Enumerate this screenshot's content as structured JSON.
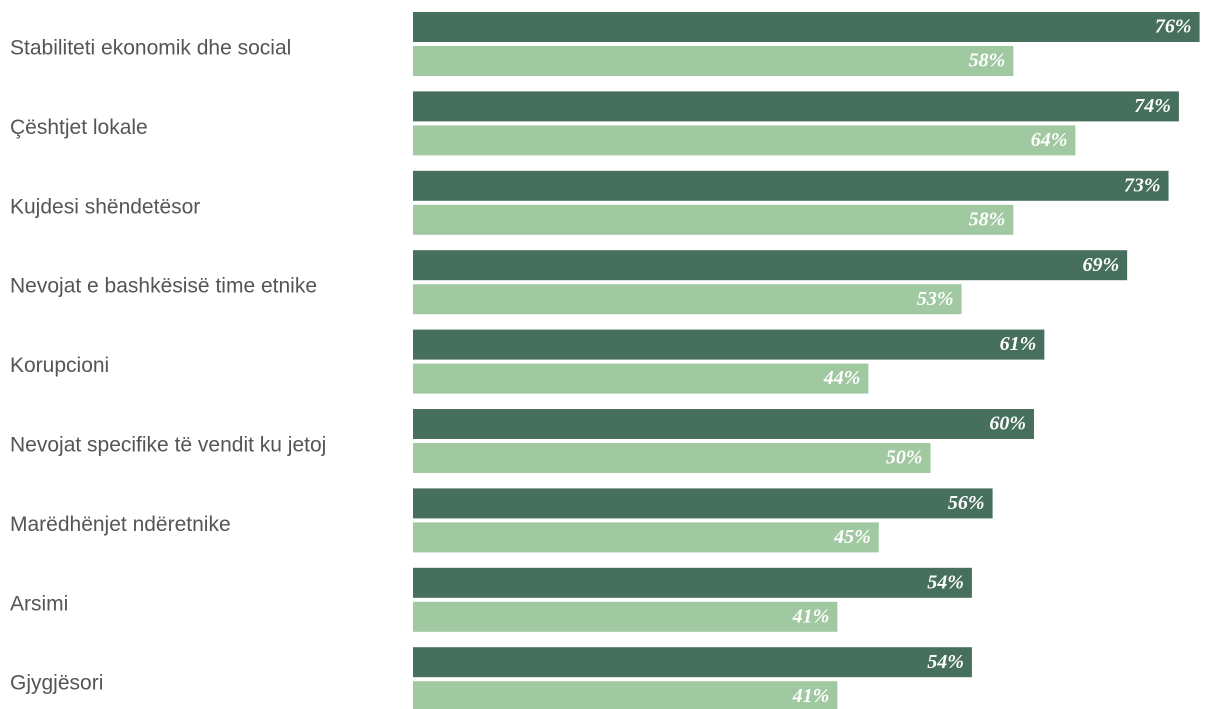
{
  "chart_data": {
    "type": "bar",
    "orientation": "horizontal",
    "categories": [
      "Stabiliteti ekonomik dhe social",
      "Çështjet lokale",
      "Kujdesi shëndetësor",
      "Nevojat e bashkësisë time etnike",
      "Korupcioni",
      "Nevojat specifike të vendit ku jetoj",
      "Marëdhënjet ndëretnike",
      "Arsimi",
      "Gjygjësori"
    ],
    "series": [
      {
        "values": [
          76,
          74,
          73,
          69,
          61,
          60,
          56,
          54,
          54
        ],
        "labels": [
          "76%",
          "74%",
          "73%",
          "69%",
          "61%",
          "60%",
          "56%",
          "54%",
          "54%"
        ],
        "color": "#466f5e"
      },
      {
        "values": [
          58,
          64,
          58,
          53,
          44,
          50,
          45,
          41,
          41
        ],
        "labels": [
          "58%",
          "64%",
          "58%",
          "53%",
          "44%",
          "50%",
          "45%",
          "41%",
          "41%"
        ],
        "color": "#a0c8a1"
      }
    ],
    "unit": "%",
    "grid": false,
    "legend": "none"
  }
}
